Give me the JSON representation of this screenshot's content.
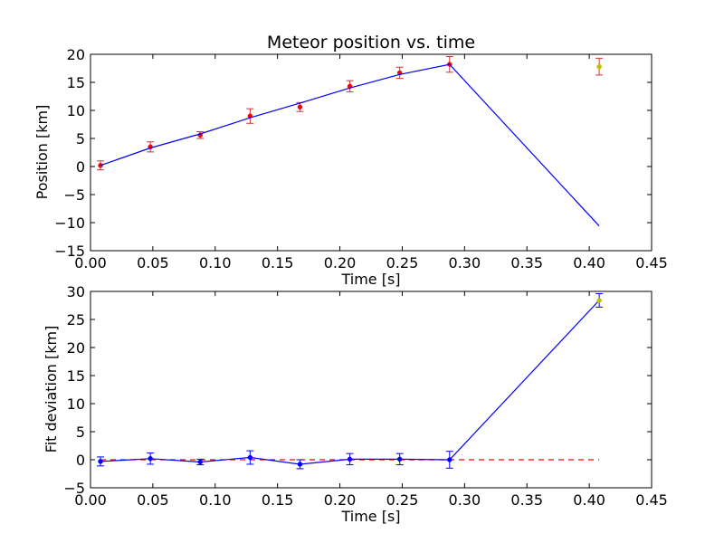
{
  "chart_data": [
    {
      "type": "scatter",
      "title": "Meteor position vs. time",
      "xlabel": "Time [s]",
      "ylabel": "Position [km]",
      "xlim": [
        0.0,
        0.45
      ],
      "ylim": [
        -15,
        20
      ],
      "xticks": [
        "0.00",
        "0.05",
        "0.10",
        "0.15",
        "0.20",
        "0.25",
        "0.30",
        "0.35",
        "0.40",
        "0.45"
      ],
      "yticks": [
        "−15",
        "−10",
        "−5",
        "0",
        "5",
        "10",
        "15",
        "20"
      ],
      "grid": false,
      "series": [
        {
          "kind": "errorbar-points",
          "color": "#ff0000",
          "errorbar_color": "#cc3333",
          "points": [
            {
              "x": 0.008,
              "y": 0.2,
              "err": 0.8
            },
            {
              "x": 0.048,
              "y": 3.5,
              "err": 0.9
            },
            {
              "x": 0.088,
              "y": 5.6,
              "err": 0.6
            },
            {
              "x": 0.128,
              "y": 9.0,
              "err": 1.3
            },
            {
              "x": 0.168,
              "y": 10.6,
              "err": 0.8
            },
            {
              "x": 0.208,
              "y": 14.3,
              "err": 1.0
            },
            {
              "x": 0.248,
              "y": 16.7,
              "err": 1.0
            },
            {
              "x": 0.288,
              "y": 18.2,
              "err": 1.4
            }
          ]
        },
        {
          "kind": "errorbar-points",
          "color": "#bfbf00",
          "errorbar_color": "#cc3333",
          "points": [
            {
              "x": 0.408,
              "y": 17.8,
              "err": 1.5
            }
          ]
        },
        {
          "kind": "line",
          "color": "#0000ff",
          "points": [
            {
              "x": 0.008,
              "y": 0.2
            },
            {
              "x": 0.048,
              "y": 3.3
            },
            {
              "x": 0.088,
              "y": 5.8
            },
            {
              "x": 0.128,
              "y": 8.7
            },
            {
              "x": 0.168,
              "y": 11.3
            },
            {
              "x": 0.208,
              "y": 14.0
            },
            {
              "x": 0.248,
              "y": 16.4
            },
            {
              "x": 0.288,
              "y": 18.2
            },
            {
              "x": 0.408,
              "y": -10.6
            }
          ]
        }
      ]
    },
    {
      "type": "scatter",
      "title": "",
      "xlabel": "Time [s]",
      "ylabel": "Fit deviation [km]",
      "xlim": [
        0.0,
        0.45
      ],
      "ylim": [
        -5,
        30
      ],
      "xticks": [
        "0.00",
        "0.05",
        "0.10",
        "0.15",
        "0.20",
        "0.25",
        "0.30",
        "0.35",
        "0.40",
        "0.45"
      ],
      "yticks": [
        "−5",
        "0",
        "5",
        "10",
        "15",
        "20",
        "25",
        "30"
      ],
      "grid": false,
      "series": [
        {
          "kind": "dashed-line",
          "color": "#ff0000",
          "points": [
            {
              "x": 0.008,
              "y": 0
            },
            {
              "x": 0.408,
              "y": 0
            }
          ]
        },
        {
          "kind": "line",
          "color": "#0000ff",
          "points": [
            {
              "x": 0.008,
              "y": -0.3
            },
            {
              "x": 0.048,
              "y": 0.2
            },
            {
              "x": 0.088,
              "y": -0.4
            },
            {
              "x": 0.128,
              "y": 0.4
            },
            {
              "x": 0.168,
              "y": -0.8
            },
            {
              "x": 0.208,
              "y": 0.1
            },
            {
              "x": 0.248,
              "y": 0.1
            },
            {
              "x": 0.288,
              "y": 0.0
            },
            {
              "x": 0.408,
              "y": 28.4
            }
          ]
        },
        {
          "kind": "errorbar-points",
          "color": "#0000ff",
          "errorbar_color": "#0000ff",
          "points": [
            {
              "x": 0.008,
              "y": -0.3,
              "err": 0.8
            },
            {
              "x": 0.048,
              "y": 0.2,
              "err": 1.0
            },
            {
              "x": 0.088,
              "y": -0.4,
              "err": 0.5
            },
            {
              "x": 0.128,
              "y": 0.4,
              "err": 1.2
            },
            {
              "x": 0.168,
              "y": -0.8,
              "err": 0.8
            },
            {
              "x": 0.208,
              "y": 0.1,
              "err": 1.0
            },
            {
              "x": 0.248,
              "y": 0.1,
              "err": 1.0
            },
            {
              "x": 0.288,
              "y": 0.0,
              "err": 1.5
            }
          ]
        },
        {
          "kind": "errorbar-points",
          "color": "#bfbf00",
          "errorbar_color": "#0000ff",
          "points": [
            {
              "x": 0.408,
              "y": 28.4,
              "err": 1.2
            }
          ]
        }
      ]
    }
  ]
}
